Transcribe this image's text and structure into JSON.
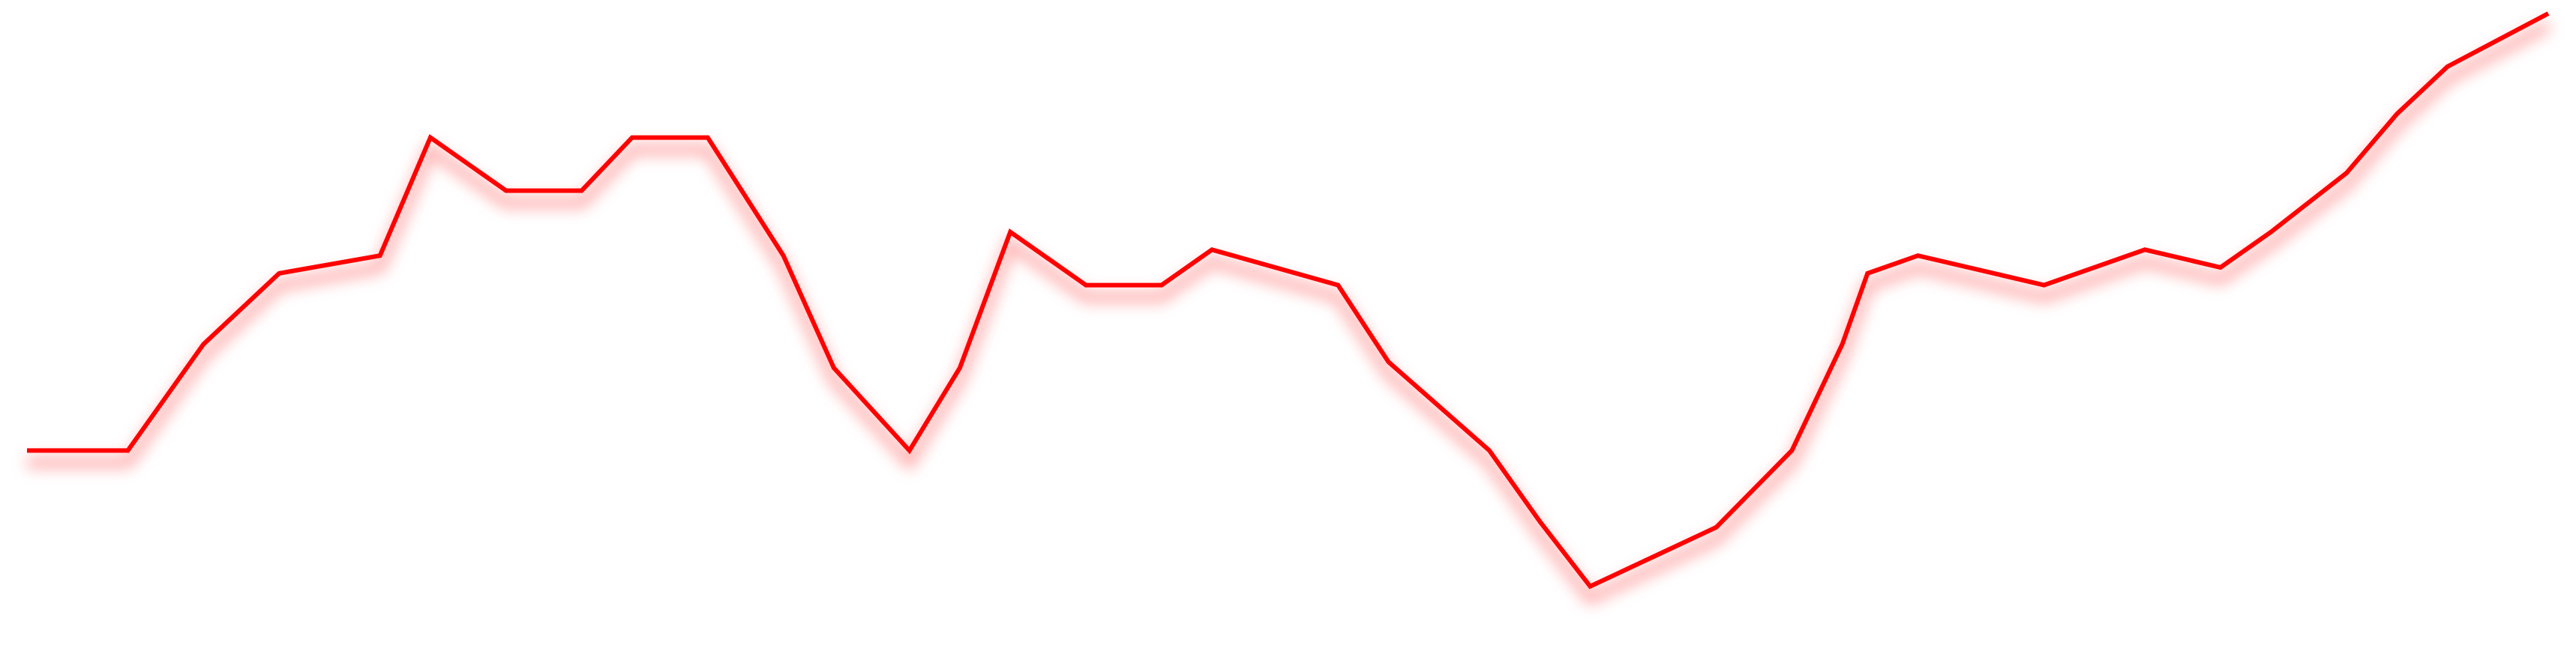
{
  "chart_data": {
    "type": "line",
    "title": "",
    "xlabel": "",
    "ylabel": "",
    "grid": false,
    "legend": "none",
    "color": "#ff0000",
    "glow_color": "#ff9a9a",
    "ylim": [
      0,
      100
    ],
    "series": [
      {
        "x": [
          0,
          4,
          7,
          10,
          14,
          16,
          19,
          22,
          24,
          27,
          30,
          32,
          35,
          37,
          39,
          42,
          45,
          47,
          52,
          54,
          58,
          60,
          62,
          65,
          67,
          70,
          72,
          73,
          75,
          80,
          84,
          87,
          89,
          92,
          94,
          96,
          100
        ],
        "values": [
          29,
          29,
          47,
          59,
          62,
          82,
          73,
          73,
          82,
          82,
          62,
          43,
          29,
          43,
          66,
          57,
          57,
          63,
          57,
          44,
          29,
          17,
          6,
          12,
          16,
          29,
          47,
          59,
          62,
          57,
          63,
          60,
          66,
          76,
          86,
          94,
          103
        ]
      }
    ]
  }
}
